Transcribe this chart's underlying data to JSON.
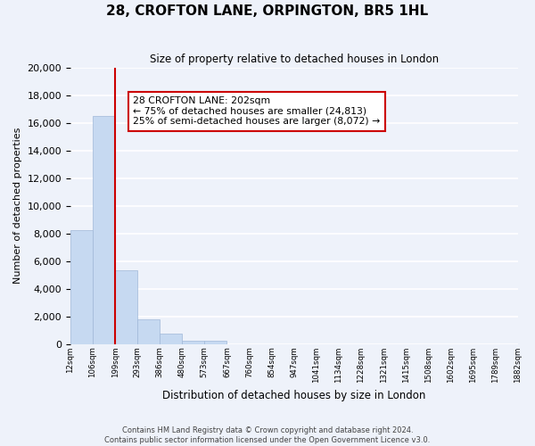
{
  "title": "28, CROFTON LANE, ORPINGTON, BR5 1HL",
  "subtitle": "Size of property relative to detached houses in London",
  "xlabel": "Distribution of detached houses by size in London",
  "ylabel": "Number of detached properties",
  "bar_values": [
    8200,
    16500,
    5300,
    1800,
    750,
    250,
    200,
    0,
    0,
    0,
    0,
    0,
    0,
    0,
    0,
    0,
    0,
    0,
    0,
    0
  ],
  "bin_labels": [
    "12sqm",
    "106sqm",
    "199sqm",
    "293sqm",
    "386sqm",
    "480sqm",
    "573sqm",
    "667sqm",
    "760sqm",
    "854sqm",
    "947sqm",
    "1041sqm",
    "1134sqm",
    "1228sqm",
    "1321sqm",
    "1415sqm",
    "1508sqm",
    "1602sqm",
    "1695sqm",
    "1789sqm",
    "1882sqm"
  ],
  "bar_color": "#c6d9f1",
  "bar_edge_color": "#a0b8d8",
  "property_line_color": "#cc0000",
  "property_bin_boundary": 1.5,
  "annotation_box_text": "28 CROFTON LANE: 202sqm\n← 75% of detached houses are smaller (24,813)\n25% of semi-detached houses are larger (8,072) →",
  "ylim": [
    0,
    20000
  ],
  "yticks": [
    0,
    2000,
    4000,
    6000,
    8000,
    10000,
    12000,
    14000,
    16000,
    18000,
    20000
  ],
  "footer_line1": "Contains HM Land Registry data © Crown copyright and database right 2024.",
  "footer_line2": "Contains public sector information licensed under the Open Government Licence v3.0.",
  "background_color": "#eef2fa",
  "grid_color": "#ffffff"
}
